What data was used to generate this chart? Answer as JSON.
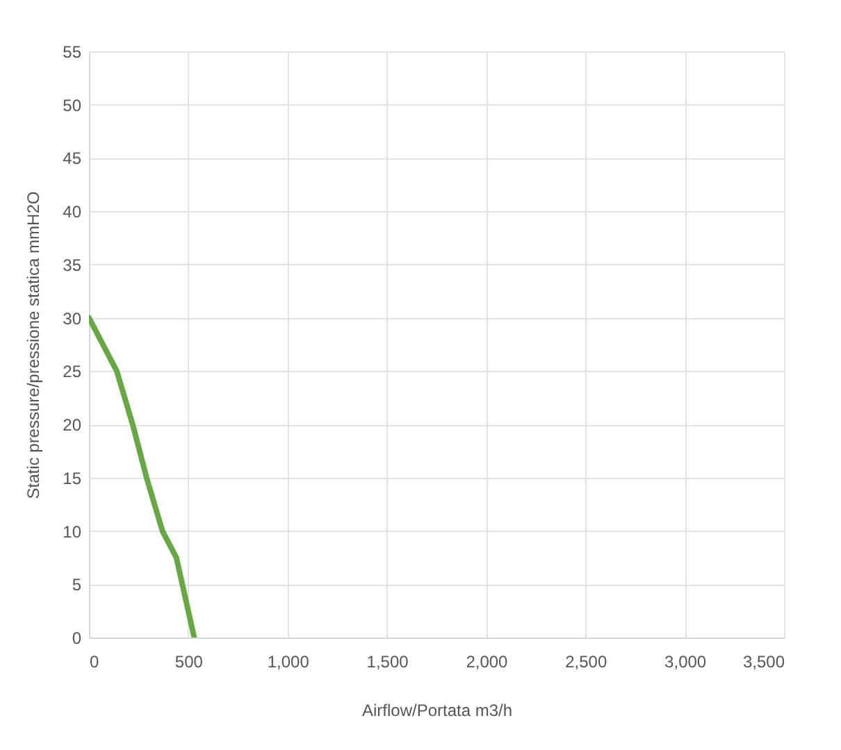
{
  "chart_data": {
    "type": "line",
    "xlabel": "Airflow/Portata m3/h",
    "ylabel": "Static pressure/pressione statica mmH2O",
    "x": [
      0,
      140,
      220,
      290,
      370,
      440,
      530
    ],
    "series": [
      {
        "color": "#67a845",
        "values": [
          30,
          25,
          20,
          15,
          10,
          7.5,
          0
        ]
      }
    ],
    "xlim": [
      0,
      3500
    ],
    "xticks": [
      0,
      {
        "value": 500,
        "label": "500"
      },
      {
        "value": 1000,
        "label": "1,000"
      },
      {
        "value": 1500,
        "label": "1,500"
      },
      {
        "value": 2000,
        "label": "2,000"
      },
      {
        "value": 2500,
        "label": "2,500"
      },
      {
        "value": 3000,
        "label": "3,000"
      },
      {
        "value": 3500,
        "label": "3,500"
      }
    ],
    "ylim": [
      0,
      55
    ],
    "yticks": [
      0,
      5,
      10,
      15,
      20,
      25,
      30,
      35,
      40,
      45,
      50,
      55
    ],
    "grid": true
  }
}
